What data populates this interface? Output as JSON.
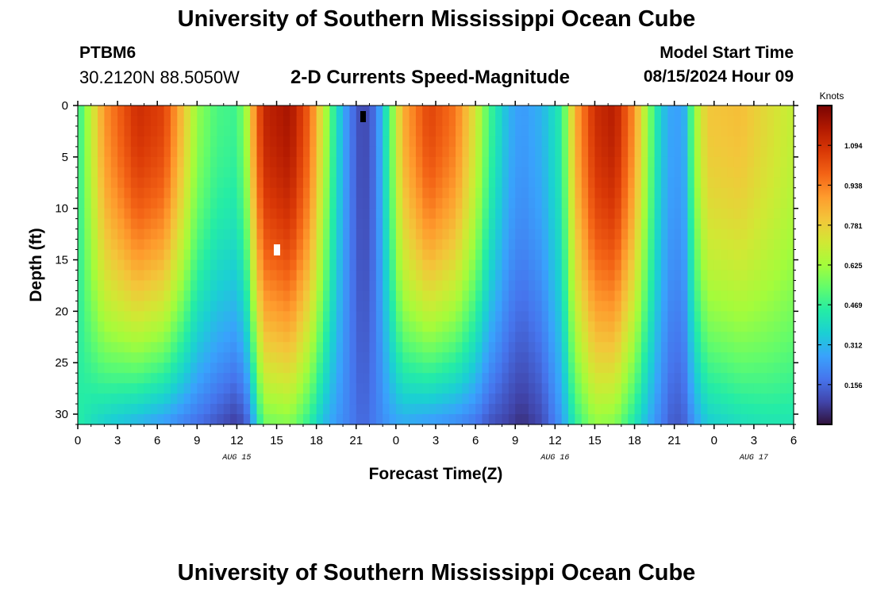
{
  "page": {
    "title_top": "University of Southern Mississippi Ocean Cube",
    "title_bottom": "University of Southern Mississippi Ocean Cube",
    "station": "PTBM6",
    "coordinates": "30.2120N  88.5050W",
    "subtitle": "2-D Currents Speed-Magnitude",
    "model_start_label": "Model Start Time",
    "model_start_value": "08/15/2024 Hour 09"
  },
  "chart_data": {
    "type": "heatmap",
    "title": "2-D Currents Speed-Magnitude",
    "xlabel": "Forecast Time(Z)",
    "ylabel": "Depth (ft)",
    "x_range_hours": [
      0,
      54
    ],
    "x_tick_hours": [
      0,
      3,
      6,
      9,
      12,
      15,
      18,
      21,
      24,
      27,
      30,
      33,
      36,
      39,
      42,
      45,
      48,
      51,
      54
    ],
    "x_tick_labels": [
      "0",
      "3",
      "6",
      "9",
      "12",
      "15",
      "18",
      "21",
      "0",
      "3",
      "6",
      "9",
      "12",
      "15",
      "18",
      "21",
      "0",
      "3",
      "6"
    ],
    "date_labels": [
      {
        "hour": 12,
        "text": "AUG 15"
      },
      {
        "hour": 36,
        "text": "AUG 16"
      },
      {
        "hour": 51,
        "text": "AUG 17"
      }
    ],
    "y_range_ft": [
      0,
      31
    ],
    "y_tick_values": [
      0,
      5,
      10,
      15,
      20,
      25,
      30
    ],
    "y_tick_labels": [
      "0",
      "5",
      "10",
      "15",
      "20",
      "25",
      "30"
    ],
    "colorbar": {
      "label": "Knots",
      "min": 0.0,
      "max": 1.25,
      "tick_values": [
        1.094,
        0.938,
        0.781,
        0.625,
        0.469,
        0.312,
        0.156
      ],
      "tick_labels": [
        "1.094",
        "0.938",
        "0.781",
        "0.625",
        "0.469",
        "0.312",
        "0.156"
      ],
      "colors": [
        "#30123b",
        "#4145ab",
        "#4675ed",
        "#39a2fc",
        "#1bcfd4",
        "#24eca6",
        "#61fc6c",
        "#a4fc3b",
        "#d1e834",
        "#f3c63a",
        "#fe9b2d",
        "#f36315",
        "#d93806",
        "#b11901",
        "#7a0403"
      ]
    },
    "speed_profiles_knots": [
      {
        "hour": 0,
        "top": 0.45,
        "bottom": 0.45
      },
      {
        "hour": 1,
        "top": 0.68,
        "bottom": 0.4
      },
      {
        "hour": 2,
        "top": 0.9,
        "bottom": 0.36
      },
      {
        "hour": 4.5,
        "top": 1.1,
        "bottom": 0.3
      },
      {
        "hour": 6.5,
        "top": 1.05,
        "bottom": 0.25
      },
      {
        "hour": 8,
        "top": 0.8,
        "bottom": 0.2
      },
      {
        "hour": 9,
        "top": 0.6,
        "bottom": 0.17
      },
      {
        "hour": 10.5,
        "top": 0.5,
        "bottom": 0.12
      },
      {
        "hour": 12,
        "top": 0.48,
        "bottom": 0.07
      },
      {
        "hour": 12.8,
        "top": 0.65,
        "bottom": 0.15
      },
      {
        "hour": 13.3,
        "top": 0.9,
        "bottom": 0.3
      },
      {
        "hour": 14,
        "top": 1.12,
        "bottom": 0.55
      },
      {
        "hour": 16,
        "top": 1.18,
        "bottom": 0.58
      },
      {
        "hour": 17.5,
        "top": 0.98,
        "bottom": 0.45
      },
      {
        "hour": 18.5,
        "top": 0.7,
        "bottom": 0.32
      },
      {
        "hour": 19.5,
        "top": 0.4,
        "bottom": 0.25
      },
      {
        "hour": 20.5,
        "top": 0.2,
        "bottom": 0.2
      },
      {
        "hour": 21.5,
        "top": 0.08,
        "bottom": 0.15
      },
      {
        "hour": 22.5,
        "top": 0.18,
        "bottom": 0.2
      },
      {
        "hour": 23.5,
        "top": 0.5,
        "bottom": 0.25
      },
      {
        "hour": 24.5,
        "top": 0.85,
        "bottom": 0.28
      },
      {
        "hour": 26.5,
        "top": 1.05,
        "bottom": 0.25
      },
      {
        "hour": 28.5,
        "top": 0.95,
        "bottom": 0.22
      },
      {
        "hour": 30,
        "top": 0.72,
        "bottom": 0.18
      },
      {
        "hour": 31,
        "top": 0.5,
        "bottom": 0.12
      },
      {
        "hour": 32.5,
        "top": 0.3,
        "bottom": 0.08
      },
      {
        "hour": 33.5,
        "top": 0.25,
        "bottom": 0.05
      },
      {
        "hour": 35,
        "top": 0.3,
        "bottom": 0.1
      },
      {
        "hour": 36.5,
        "top": 0.45,
        "bottom": 0.25
      },
      {
        "hour": 37.5,
        "top": 0.85,
        "bottom": 0.45
      },
      {
        "hour": 39,
        "top": 1.1,
        "bottom": 0.6
      },
      {
        "hour": 40.5,
        "top": 1.15,
        "bottom": 0.58
      },
      {
        "hour": 42,
        "top": 0.9,
        "bottom": 0.42
      },
      {
        "hour": 43,
        "top": 0.6,
        "bottom": 0.3
      },
      {
        "hour": 44,
        "top": 0.35,
        "bottom": 0.2
      },
      {
        "hour": 45,
        "top": 0.25,
        "bottom": 0.12
      },
      {
        "hour": 45.8,
        "top": 0.3,
        "bottom": 0.15
      },
      {
        "hour": 46.5,
        "top": 0.6,
        "bottom": 0.25
      },
      {
        "hour": 47.5,
        "top": 0.8,
        "bottom": 0.35
      },
      {
        "hour": 50,
        "top": 0.82,
        "bottom": 0.4
      },
      {
        "hour": 52,
        "top": 0.75,
        "bottom": 0.42
      },
      {
        "hour": 54,
        "top": 0.68,
        "bottom": 0.42
      }
    ]
  }
}
